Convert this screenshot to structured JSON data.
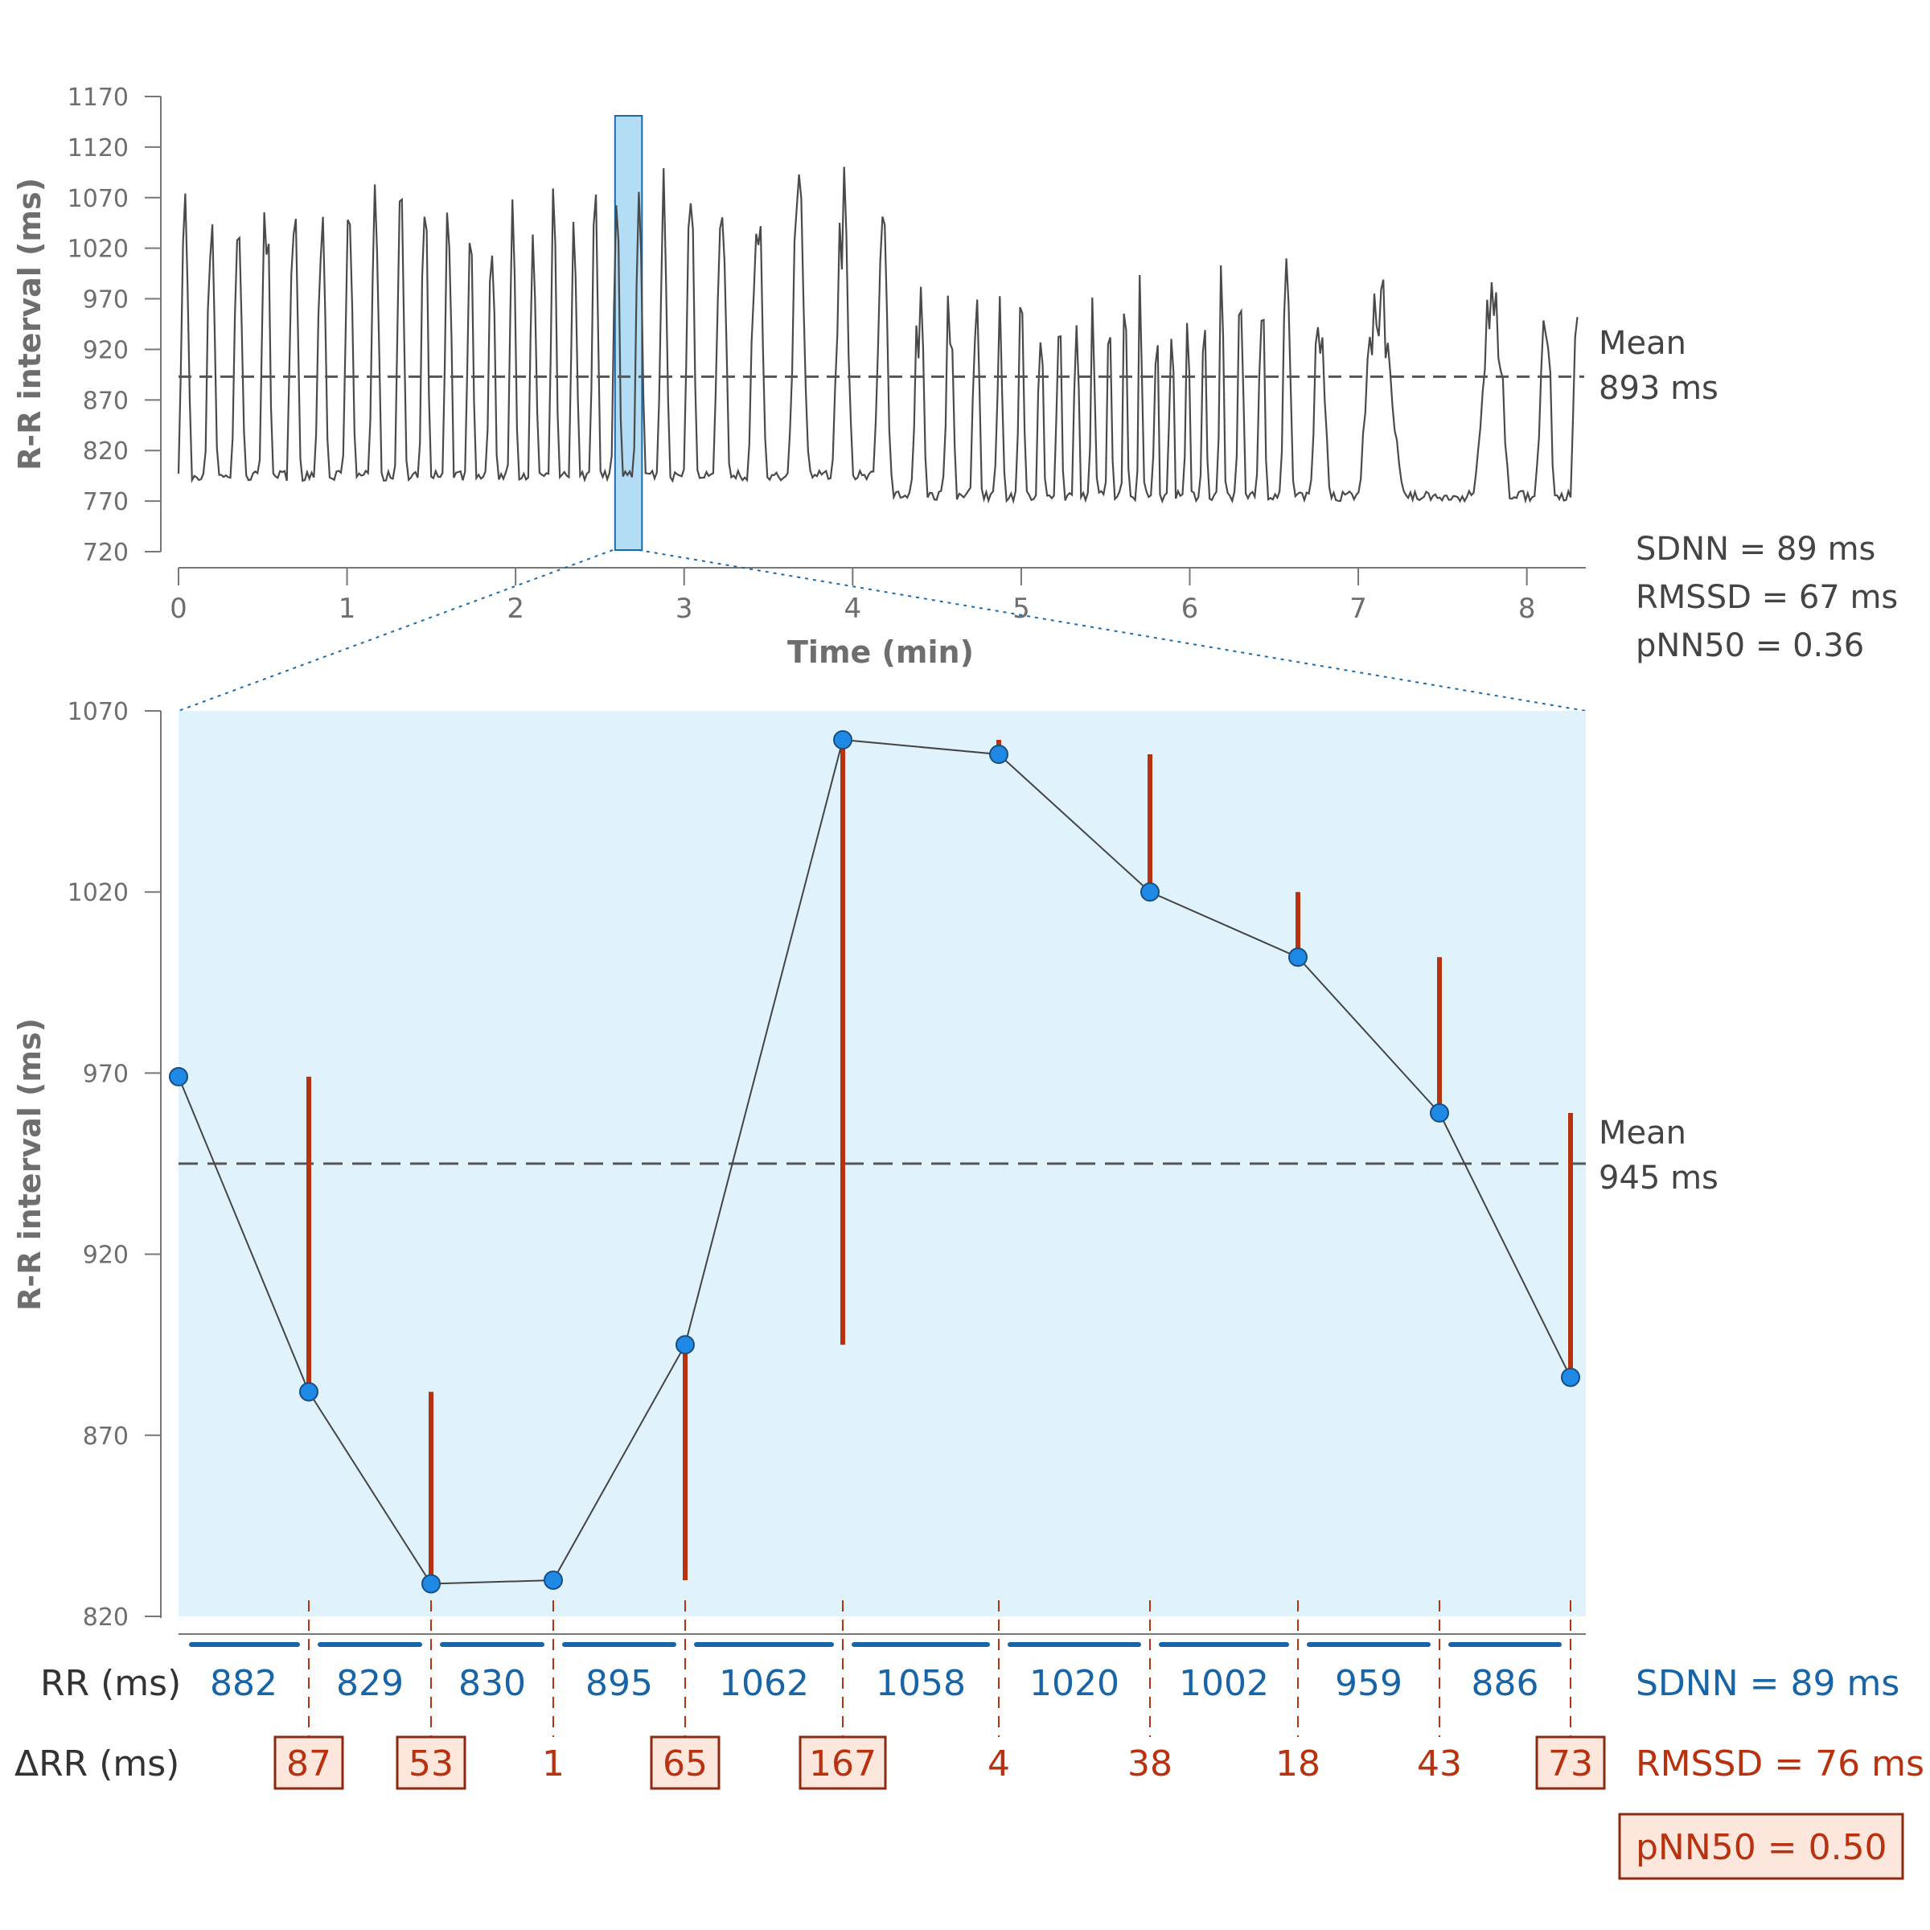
{
  "chart_data": [
    {
      "type": "line",
      "ylabel": "R-R interval (ms)",
      "xlabel": "Time (min)",
      "yticks": [
        720,
        770,
        820,
        870,
        920,
        970,
        1020,
        1070,
        1120,
        1170
      ],
      "xticks": [
        0,
        1,
        2,
        3,
        4,
        5,
        6,
        7,
        8
      ],
      "ylim": [
        720,
        1170
      ],
      "xlim": [
        0,
        8.35
      ],
      "grid": false,
      "mean_value": 893,
      "mean_label": "Mean",
      "mean_text": "893 ms",
      "highlight_window_min": [
        2.59,
        2.75
      ],
      "stats": [
        "SDNN = 89 ms",
        "RMSSD = 67 ms",
        "pNN50 = 0.36"
      ]
    },
    {
      "type": "line",
      "ylabel": "R-R interval (ms)",
      "yticks": [
        820,
        870,
        920,
        970,
        1020,
        1070
      ],
      "ylim": [
        820,
        1070
      ],
      "grid": false,
      "points": [
        969,
        882,
        829,
        830,
        895,
        1062,
        1058,
        1020,
        1002,
        959,
        886
      ],
      "mean_value": 945,
      "mean_label": "Mean",
      "mean_text": "945 ms",
      "rr_row_label": "RR (ms)",
      "rr_values": [
        "882",
        "829",
        "830",
        "895",
        "1062",
        "1058",
        "1020",
        "1002",
        "959",
        "886"
      ],
      "drr_row_label": "ΔRR (ms)",
      "drr_values": [
        "87",
        "53",
        "1",
        "65",
        "167",
        "4",
        "38",
        "18",
        "43",
        "73"
      ],
      "drr_over_50": [
        true,
        true,
        false,
        true,
        true,
        false,
        false,
        false,
        false,
        true
      ],
      "sdnn_text": "SDNN = 89 ms",
      "rmssd_text": "RMSSD = 76 ms",
      "pnn50_text": "pNN50 = 0.50"
    }
  ],
  "colors": {
    "trace": "#4a4a4a",
    "window_fill": "#b3ddf5",
    "window_stroke": "#1c6aa8",
    "zoom_bg": "#e0f2fc",
    "point": "#1e8ae6",
    "point_stroke": "#1a4d80",
    "diff": "#b83210",
    "rr_bar": "#1764a7",
    "box_fill": "#fde6dc"
  }
}
